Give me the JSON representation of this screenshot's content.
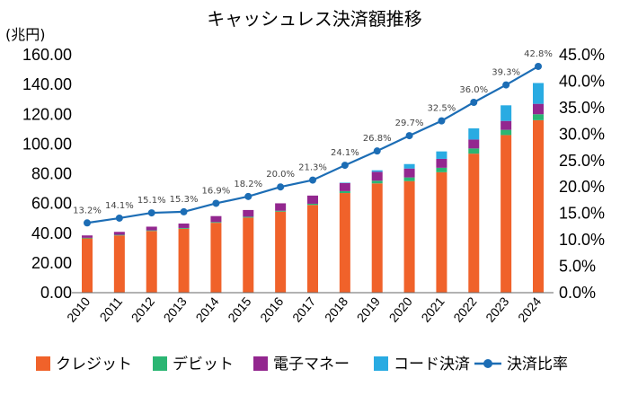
{
  "chart_data": {
    "type": "bar",
    "title": "キャッシュレス決済額推移",
    "y_unit": "(兆円)",
    "categories": [
      "2010",
      "2011",
      "2012",
      "2013",
      "2014",
      "2015",
      "2016",
      "2017",
      "2018",
      "2019",
      "2020",
      "2021",
      "2022",
      "2023",
      "2024"
    ],
    "series": [
      {
        "name": "クレジット",
        "kind": "bar",
        "color": "#f0622a",
        "values": [
          36.5,
          38.5,
          41.5,
          43.0,
          47.0,
          50.5,
          54.5,
          59.0,
          67.0,
          73.5,
          75.0,
          81.0,
          93.5,
          106.0,
          116.0
        ]
      },
      {
        "name": "デビット",
        "kind": "bar",
        "color": "#2bb673",
        "values": [
          0.4,
          0.4,
          0.4,
          0.5,
          0.5,
          0.6,
          0.6,
          0.8,
          1.3,
          1.8,
          2.5,
          3.0,
          3.5,
          3.5,
          4.0
        ]
      },
      {
        "name": "電子マネー",
        "kind": "bar",
        "color": "#93278f",
        "values": [
          1.6,
          2.0,
          2.5,
          3.0,
          4.0,
          4.5,
          5.0,
          5.5,
          5.5,
          6.0,
          6.0,
          6.0,
          6.0,
          6.0,
          7.0
        ]
      },
      {
        "name": "コード決済",
        "kind": "bar",
        "color": "#29abe2",
        "values": [
          0,
          0,
          0,
          0,
          0,
          0,
          0,
          0,
          0.2,
          1.0,
          3.0,
          5.0,
          7.5,
          10.5,
          14.0
        ]
      },
      {
        "name": "決済比率",
        "kind": "line",
        "axis": "right",
        "color": "#1c6db5",
        "values": [
          13.2,
          14.1,
          15.1,
          15.3,
          16.9,
          18.2,
          20.0,
          21.3,
          24.1,
          26.8,
          29.7,
          32.5,
          36.0,
          39.3,
          42.8
        ],
        "labels": [
          "13.2%",
          "14.1%",
          "15.1%",
          "15.3%",
          "16.9%",
          "18.2%",
          "20.0%",
          "21.3%",
          "24.1%",
          "26.8%",
          "29.7%",
          "32.5%",
          "36.0%",
          "39.3%",
          "42.8%"
        ]
      }
    ],
    "y_left": {
      "min": 0,
      "max": 160,
      "step": 20,
      "ticks": [
        "0.00",
        "20.00",
        "40.00",
        "60.00",
        "80.00",
        "100.00",
        "120.00",
        "140.00",
        "160.00"
      ]
    },
    "y_right": {
      "min": 0,
      "max": 45,
      "step": 5,
      "ticks": [
        "0.0%",
        "5.0%",
        "10.0%",
        "15.0%",
        "20.0%",
        "25.0%",
        "30.0%",
        "35.0%",
        "40.0%",
        "45.0%"
      ]
    },
    "grid": false,
    "legend_position": "bottom"
  }
}
